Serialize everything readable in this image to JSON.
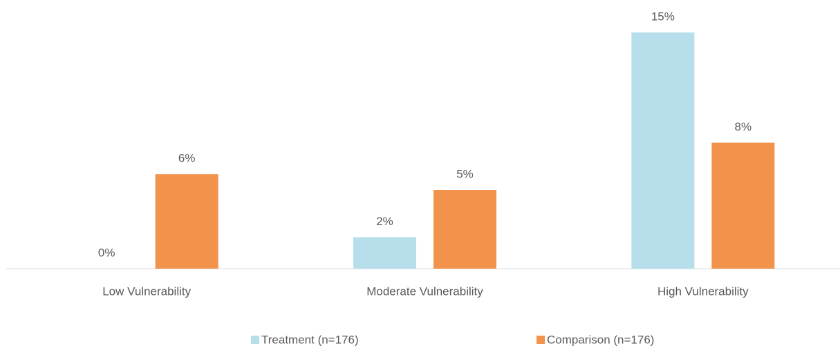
{
  "chart_data": {
    "type": "bar",
    "categories": [
      "Low Vulnerability",
      "Moderate Vulnerability",
      "High Vulnerability"
    ],
    "series": [
      {
        "name": "Treatment (n=176)",
        "color": "#b7dfeb",
        "values": [
          0,
          2,
          15
        ],
        "value_labels": [
          "0%",
          "2%",
          "15%"
        ]
      },
      {
        "name": "Comparison (n=176)",
        "color": "#f2934b",
        "values": [
          6,
          5,
          8
        ],
        "value_labels": [
          "6%",
          "5%",
          "8%"
        ]
      }
    ]
  }
}
